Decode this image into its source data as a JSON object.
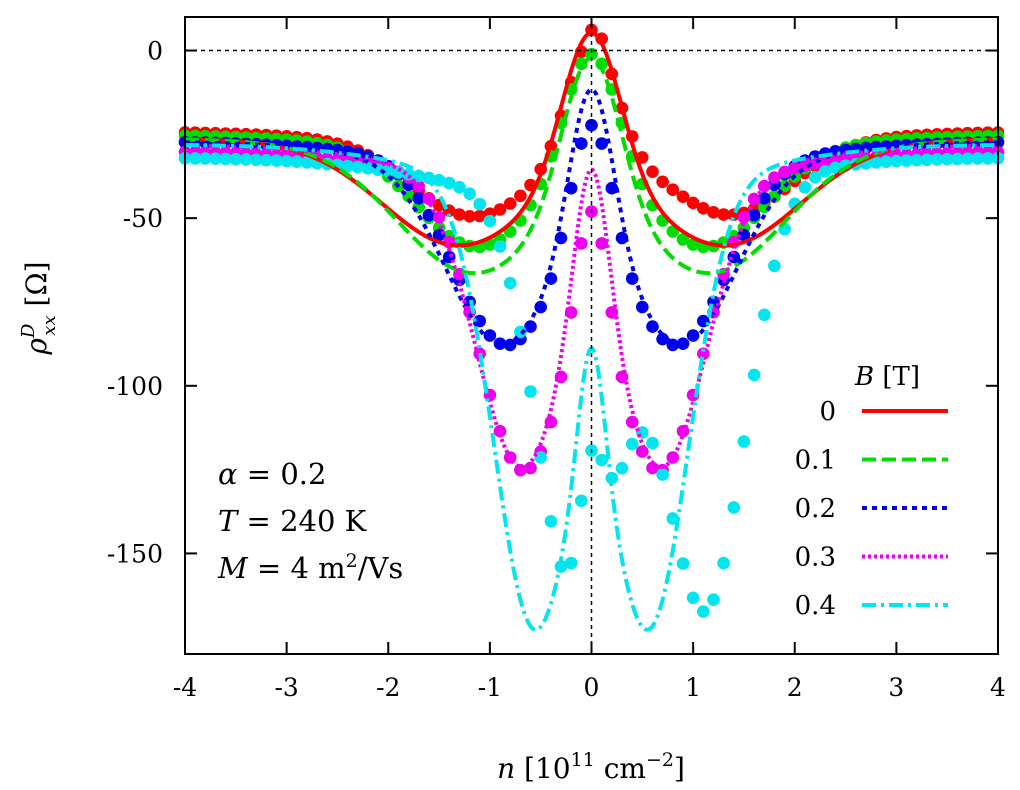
{
  "chart_data": {
    "type": "line",
    "title": "",
    "xlabel": {
      "var": "n",
      "unit_open": " [10",
      "unit_exp": "11",
      "unit_mid": " cm",
      "unit_exp2": "−2",
      "unit_close": "]"
    },
    "ylabel": {
      "var": "ρ",
      "sup": "D",
      "sub": "xx",
      "unit": " [Ω]"
    },
    "xlim": [
      -4,
      4
    ],
    "ylim": [
      -180,
      10
    ],
    "x_ticks": [
      -4,
      -3,
      -2,
      -1,
      0,
      1,
      2,
      3,
      4
    ],
    "x_tick_labels": [
      "-4",
      "-3",
      "-2",
      "-1",
      "0",
      "1",
      "2",
      "3",
      "4"
    ],
    "y_ticks": [
      0,
      -50,
      -100,
      -150
    ],
    "y_tick_labels": [
      "0",
      "-50",
      "-100",
      "-150"
    ],
    "zero_lines": {
      "horizontal_y": 0,
      "vertical_x": 0,
      "style": "dotted"
    },
    "legend": {
      "title_var": "B",
      "title_unit": " [T]",
      "position": "right",
      "entries": [
        "0",
        "0.1",
        "0.2",
        "0.3",
        "0.4"
      ]
    },
    "annotations": [
      {
        "var": "α",
        "rest": " = 0.2"
      },
      {
        "var": "T",
        "rest": " = 240 K"
      },
      {
        "var": "M",
        "rest": " = 4 m",
        "sup": "2",
        "tail": "/Vs"
      }
    ],
    "series": [
      {
        "name": "0",
        "color": "#ff0000",
        "dash": "",
        "curve": {
          "floor": -26,
          "d1": -27,
          "c1": 1.35,
          "w1": 1.0,
          "d2": -7,
          "w2": 2.4,
          "pk": 47,
          "s": 0.4
        },
        "dots": {
          "floor": -24,
          "d1": -20,
          "c1": 1.3,
          "w1": 0.8,
          "d2": -7,
          "w2": 2.4,
          "pk": 36,
          "s": 0.35,
          "jx": 0.1,
          "ja": 5
        }
      },
      {
        "name": "0.1",
        "color": "#00dd00",
        "dash": "14,6",
        "curve": {
          "floor": -26,
          "d1": -34,
          "c1": 1.2,
          "w1": 1.0,
          "d2": -8,
          "w2": 2.4,
          "pk": 48,
          "s": 0.4
        },
        "dots": {
          "floor": -25,
          "d1": -28,
          "c1": 1.15,
          "w1": 0.8,
          "d2": -7,
          "w2": 2.4,
          "pk": 38,
          "s": 0.38
        }
      },
      {
        "name": "0.2",
        "color": "#0000ee",
        "dash": "5,5",
        "curve": {
          "floor": -27,
          "d1": -52,
          "c1": 0.9,
          "w1": 0.75,
          "d2": -10,
          "w2": 2.2,
          "pk": 50,
          "s": 0.3
        },
        "dots": {
          "floor": -27,
          "d1": -53,
          "c1": 0.85,
          "w1": 0.7,
          "d2": -9,
          "w2": 2.2,
          "pk": 38,
          "s": 0.28
        }
      },
      {
        "name": "0.3",
        "color": "#ee00ee",
        "dash": "3,3",
        "curve": {
          "floor": -28,
          "d1": -85,
          "c1": 0.7,
          "w1": 0.62,
          "d2": -12,
          "w2": 2.1,
          "pk": 52,
          "s": 0.24
        },
        "dots": {
          "floor": -30,
          "d1": -85,
          "c1": 0.68,
          "w1": 0.6,
          "d2": -11,
          "w2": 2.1,
          "pk": 40,
          "s": 0.22
        }
      },
      {
        "name": "0.4",
        "color": "#00e5ee",
        "dash": "14,5,3,5",
        "curve": {
          "floor": -28,
          "d1": -130,
          "c1": 0.57,
          "w1": 0.55,
          "d2": -14,
          "w2": 1.9,
          "pk": 42,
          "s": 0.18
        },
        "dots": {
          "floor": -32,
          "d1": -126,
          "c1": 0.62,
          "w1": 0.55,
          "d2": -12,
          "w2": 1.9,
          "pk": 51,
          "s": 0.18,
          "jx": 0.5,
          "ja": -5
        }
      }
    ]
  }
}
